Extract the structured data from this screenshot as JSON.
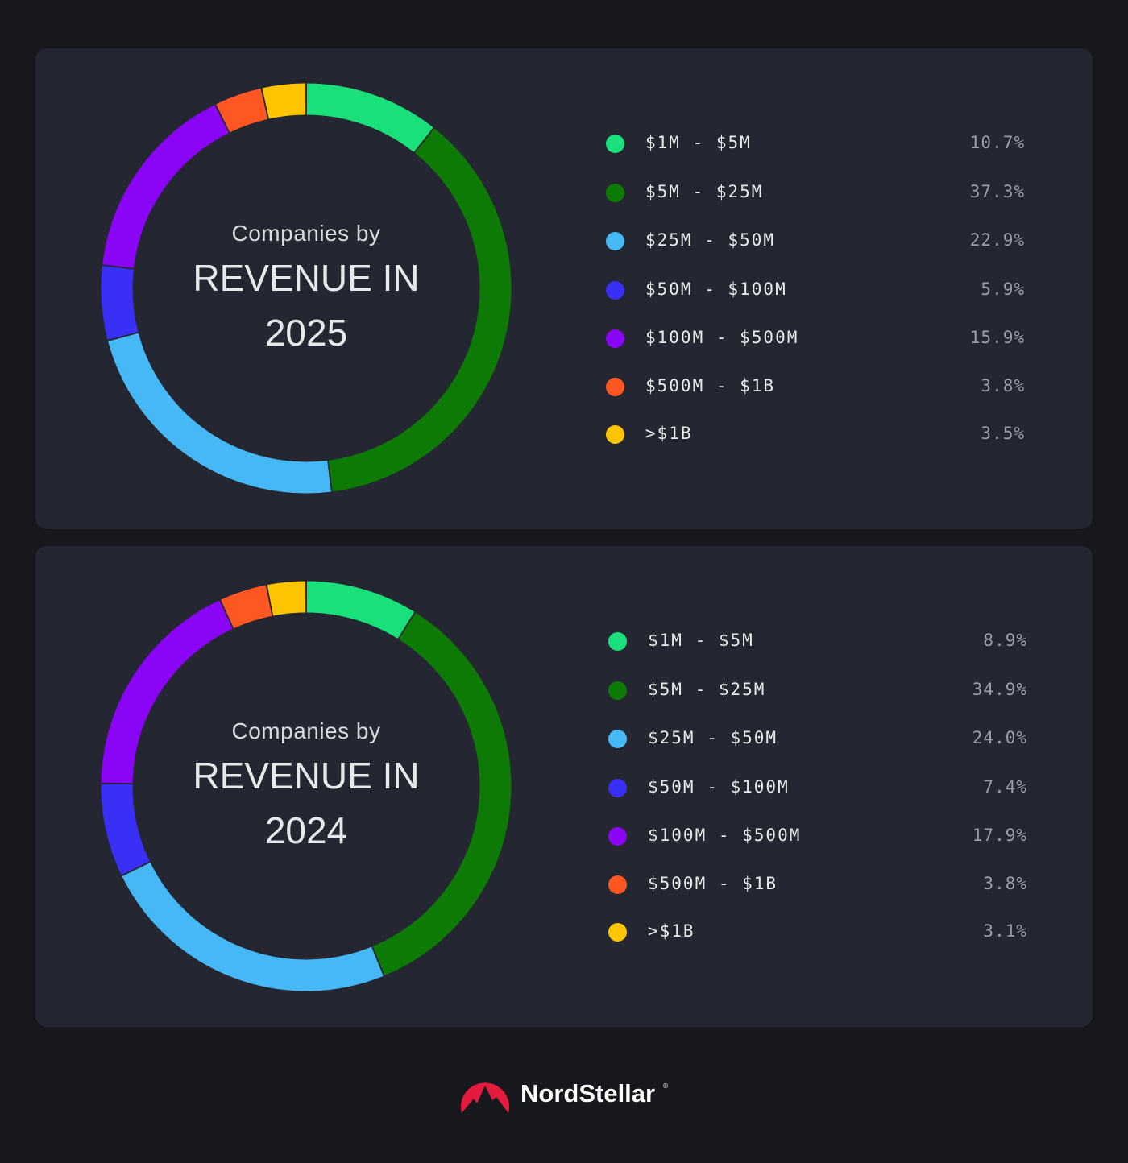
{
  "chart_data": [
    {
      "type": "pie",
      "donut": true,
      "title_line1": "Companies by",
      "title_line2": "REVENUE IN",
      "title_line3": "2025",
      "categories": [
        "$1M - $5M",
        "$5M - $25M",
        "$25M - $50M",
        "$50M - $100M",
        "$100M - $500M",
        "$500M - $1B",
        ">$1B"
      ],
      "values": [
        10.7,
        37.3,
        22.9,
        5.9,
        15.9,
        3.8,
        3.5
      ],
      "value_labels": [
        "10.7%",
        "37.3%",
        "22.9%",
        "5.9%",
        "15.9%",
        "3.8%",
        "3.5%"
      ],
      "colors": [
        "#19e07a",
        "#0e7a06",
        "#45b8f5",
        "#3a2ff5",
        "#8a05f5",
        "#ff5722",
        "#ffc400"
      ],
      "legend": "right"
    },
    {
      "type": "pie",
      "donut": true,
      "title_line1": "Companies by",
      "title_line2": "REVENUE IN",
      "title_line3": "2024",
      "categories": [
        "$1M - $5M",
        "$5M - $25M",
        "$25M - $50M",
        "$50M - $100M",
        "$100M - $500M",
        "$500M - $1B",
        ">$1B"
      ],
      "values": [
        8.9,
        34.9,
        24.0,
        7.4,
        17.9,
        3.8,
        3.1
      ],
      "value_labels": [
        "8.9%",
        "34.9%",
        "24.0%",
        "7.4%",
        "17.9%",
        "3.8%",
        "3.1%"
      ],
      "colors": [
        "#19e07a",
        "#0e7a06",
        "#45b8f5",
        "#3a2ff5",
        "#8a05f5",
        "#ff5722",
        "#ffc400"
      ],
      "legend": "right"
    }
  ],
  "footer": {
    "brand": "NordStellar",
    "reg_mark": "®",
    "logo_color": "#e41b3d"
  }
}
